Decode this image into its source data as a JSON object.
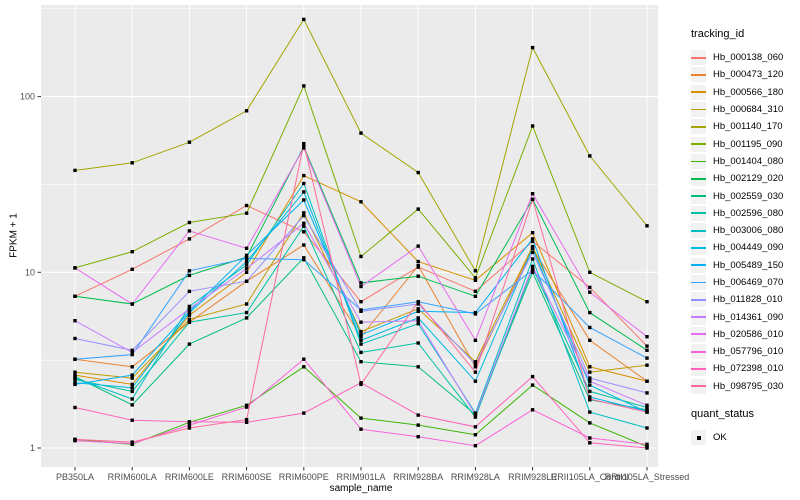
{
  "chart_data": {
    "type": "line",
    "title": "",
    "xlabel": "sample_name",
    "ylabel": "FPKM + 1",
    "y_scale": "log10",
    "ylim": [
      1,
      300
    ],
    "y_ticks": [
      "1",
      "10",
      "100"
    ],
    "grid": "on",
    "legend_position": "right",
    "point_shape": "filled-square",
    "point_color": "#000000",
    "panel_bg": "#EBEBEB",
    "grid_color": "#FFFFFF",
    "axis_text_color": "#4D4D4D",
    "categories": [
      "PB350LA",
      "RRIM600LA",
      "RRIM600LE",
      "RRIM600SE",
      "RRIM600PE",
      "RRIM901LA",
      "RRIM928BA",
      "RRIM928LA",
      "RRIM928LE",
      "RRII105LA_Control",
      "RRII105LA_Stressed"
    ],
    "series": [
      {
        "name": "Hb_000138_060",
        "color": "#F8766D",
        "values": [
          7.3,
          10.4,
          15.5,
          24,
          17,
          6.8,
          10.7,
          7.8,
          15,
          8.2,
          3.8
        ]
      },
      {
        "name": "Hb_000473_120",
        "color": "#EA8331",
        "values": [
          3.2,
          2.9,
          5.2,
          8.9,
          14.3,
          4.3,
          10.9,
          2.9,
          13.7,
          4.1,
          2.4
        ]
      },
      {
        "name": "Hb_000566_180",
        "color": "#D89000",
        "values": [
          2.6,
          2.3,
          5.7,
          10.0,
          35.5,
          25.2,
          11.5,
          9.0,
          16.8,
          2.9,
          2.4
        ]
      },
      {
        "name": "Hb_000684_310",
        "color": "#C09B00",
        "values": [
          2.7,
          2.5,
          5.4,
          6.6,
          21.8,
          4.6,
          6.2,
          3.1,
          14.0,
          2.7,
          2.96
        ]
      },
      {
        "name": "Hb_001140_170",
        "color": "#A3A500",
        "values": [
          38,
          42,
          55,
          83,
          275,
          62,
          37,
          10.2,
          190,
          46,
          18.4
        ]
      },
      {
        "name": "Hb_001195_090",
        "color": "#7CAE00",
        "values": [
          10.6,
          13.1,
          19.2,
          21.7,
          115,
          12.3,
          22.9,
          9.3,
          68,
          10.0,
          6.8
        ]
      },
      {
        "name": "Hb_001404_080",
        "color": "#39B600",
        "values": [
          1.12,
          1.05,
          1.4,
          1.75,
          2.9,
          1.48,
          1.35,
          1.19,
          2.28,
          1.39,
          1.02
        ]
      },
      {
        "name": "Hb_002129_020",
        "color": "#00BB4E",
        "values": [
          7.3,
          6.6,
          9.6,
          12.2,
          52,
          8.7,
          9.5,
          7.3,
          26,
          5.9,
          3.6
        ]
      },
      {
        "name": "Hb_002559_030",
        "color": "#00BF7D",
        "values": [
          2.55,
          1.76,
          3.9,
          5.5,
          12.1,
          3.1,
          2.9,
          1.55,
          10.0,
          1.88,
          1.65
        ]
      },
      {
        "name": "Hb_002596_080",
        "color": "#00C1A3",
        "values": [
          2.45,
          2.1,
          5.2,
          5.9,
          18.3,
          3.5,
          3.96,
          1.5,
          10.6,
          2.1,
          1.7
        ]
      },
      {
        "name": "Hb_003006_080",
        "color": "#00BFC4",
        "values": [
          2.5,
          1.9,
          6.4,
          11.0,
          32,
          3.9,
          5.1,
          1.58,
          11.9,
          1.6,
          1.3
        ]
      },
      {
        "name": "Hb_004449_090",
        "color": "#00BAE0",
        "values": [
          2.35,
          2.2,
          5.9,
          11.5,
          28.7,
          4.1,
          5.5,
          2.4,
          13.7,
          2.28,
          1.6
        ]
      },
      {
        "name": "Hb_005489_150",
        "color": "#00B0F6",
        "values": [
          2.3,
          2.6,
          6.0,
          12.5,
          25.8,
          4.4,
          6.0,
          5.9,
          15.5,
          1.95,
          1.62
        ]
      },
      {
        "name": "Hb_006469_070",
        "color": "#35A2FF",
        "values": [
          3.2,
          3.4,
          10.2,
          12.0,
          11.8,
          6.1,
          6.8,
          5.8,
          10.3,
          4.85,
          3.25
        ]
      },
      {
        "name": "Hb_011828_010",
        "color": "#9590FF",
        "values": [
          4.2,
          3.6,
          7.8,
          8.9,
          21.0,
          6.0,
          6.6,
          3.0,
          13.0,
          2.5,
          2.06
        ]
      },
      {
        "name": "Hb_014361_090",
        "color": "#C77CFF",
        "values": [
          5.3,
          3.5,
          6.2,
          10.5,
          19.0,
          5.2,
          5.3,
          1.55,
          10.8,
          2.4,
          1.75
        ]
      },
      {
        "name": "Hb_020586_010",
        "color": "#E76BF3",
        "values": [
          10.6,
          6.6,
          17.2,
          13.7,
          51,
          8.3,
          14.1,
          4.1,
          28,
          7.7,
          4.3
        ]
      },
      {
        "name": "Hb_057796_010",
        "color": "#FA62DB",
        "values": [
          1.1,
          1.06,
          1.35,
          1.71,
          3.2,
          1.28,
          1.16,
          1.03,
          1.65,
          1.14,
          1.05
        ]
      },
      {
        "name": "Hb_072398_010",
        "color": "#FF62BC",
        "values": [
          1.7,
          1.44,
          1.41,
          1.4,
          1.58,
          2.35,
          1.54,
          1.32,
          2.55,
          1.07,
          1.0
        ]
      },
      {
        "name": "Hb_098795_030",
        "color": "#FF6A98",
        "values": [
          1.12,
          1.08,
          1.3,
          1.45,
          54,
          2.3,
          6.8,
          2.7,
          26,
          1.9,
          1.6
        ]
      }
    ]
  },
  "legend": {
    "tracking_title": "tracking_id",
    "quant_title": "quant_status",
    "quant_items": [
      "OK"
    ]
  }
}
